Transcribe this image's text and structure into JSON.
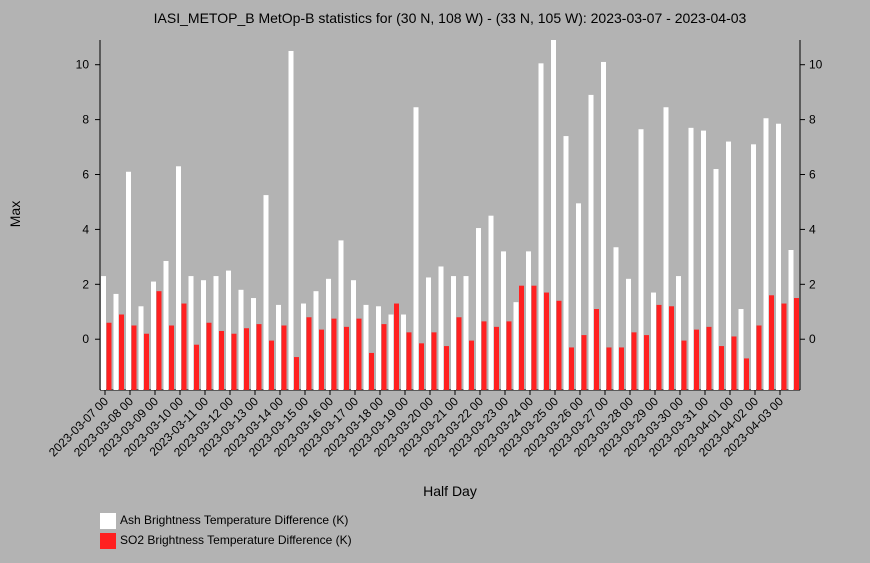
{
  "chart_data": {
    "type": "bar",
    "title": "IASI_METOP_B MetOp-B statistics for (30 N, 108 W) - (33 N, 105 W): 2023-03-07 - 2023-04-03",
    "x_label": "Half Day",
    "y_label": "Max",
    "categories": [
      "2023-03-07 00",
      null,
      "2023-03-08 00",
      null,
      "2023-03-09 00",
      null,
      "2023-03-10 00",
      null,
      "2023-03-11 00",
      null,
      "2023-03-12 00",
      null,
      "2023-03-13 00",
      null,
      "2023-03-14 00",
      null,
      "2023-03-15 00",
      null,
      "2023-03-16 00",
      null,
      "2023-03-17 00",
      null,
      "2023-03-18 00",
      null,
      "2023-03-19 00",
      null,
      "2023-03-20 00",
      null,
      "2023-03-21 00",
      null,
      "2023-03-22 00",
      null,
      "2023-03-23 00",
      null,
      "2023-03-24 00",
      null,
      "2023-03-25 00",
      null,
      "2023-03-26 00",
      null,
      "2023-03-27 00",
      null,
      "2023-03-28 00",
      null,
      "2023-03-29 00",
      null,
      "2023-03-30 00",
      null,
      "2023-03-31 00",
      null,
      "2023-04-01 00",
      null,
      "2023-04-02 00",
      null,
      "2023-04-03 00",
      null
    ],
    "series": [
      {
        "name": "Ash Brightness Temperature Difference (K)",
        "color": "#ffffff",
        "values": [
          2.3,
          1.65,
          6.1,
          1.2,
          2.1,
          2.85,
          6.3,
          2.3,
          2.15,
          2.3,
          2.5,
          1.8,
          1.5,
          5.25,
          1.25,
          10.5,
          1.3,
          1.75,
          2.2,
          3.6,
          2.15,
          1.25,
          1.2,
          0.9,
          0.9,
          8.45,
          2.25,
          2.65,
          2.3,
          2.3,
          4.05,
          4.5,
          3.2,
          1.35,
          3.2,
          10.05,
          10.9,
          7.4,
          4.95,
          8.9,
          10.1,
          3.35,
          2.2,
          7.65,
          1.7,
          8.45,
          2.3,
          7.7,
          7.6,
          6.2,
          7.2,
          1.1,
          7.1,
          8.05,
          7.85,
          3.25
        ]
      },
      {
        "name": "SO2 Brightness Temperature Difference (K)",
        "color": "#ff2020",
        "values": [
          0.6,
          0.9,
          0.5,
          0.2,
          1.75,
          0.5,
          1.3,
          -0.2,
          0.6,
          0.3,
          0.2,
          0.4,
          0.55,
          -0.05,
          0.5,
          -0.65,
          0.8,
          0.35,
          0.75,
          0.45,
          0.75,
          -0.5,
          0.55,
          1.3,
          0.25,
          -0.15,
          0.25,
          -0.25,
          0.8,
          -0.05,
          0.65,
          0.45,
          0.65,
          1.95,
          1.95,
          1.7,
          1.4,
          -0.3,
          0.15,
          1.1,
          -0.3,
          -0.3,
          0.25,
          0.15,
          1.25,
          1.2,
          -0.05,
          0.35,
          0.45,
          -0.25,
          0.1,
          -0.7,
          0.5,
          1.6,
          1.3,
          1.5
        ]
      }
    ],
    "ylim": [
      -1.85,
      10.9
    ],
    "yticks": [
      0,
      2,
      4,
      6,
      8,
      10
    ]
  }
}
